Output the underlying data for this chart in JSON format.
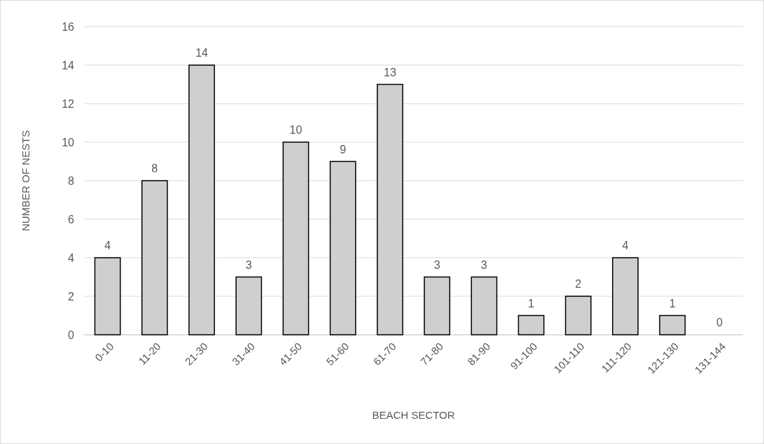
{
  "chart_data": {
    "type": "bar",
    "xlabel": "BEACH SECTOR",
    "ylabel": "NUMBER OF NESTS",
    "categories": [
      "0-10",
      "11-20",
      "21-30",
      "31-40",
      "41-50",
      "51-60",
      "61-70",
      "71-80",
      "81-90",
      "91-100",
      "101-110",
      "111-120",
      "121-130",
      "131-144"
    ],
    "values": [
      4,
      8,
      14,
      3,
      10,
      9,
      13,
      3,
      3,
      1,
      2,
      4,
      1,
      0
    ],
    "color": "#d0cece",
    "ylim": [
      0,
      16
    ],
    "yticks": [
      0,
      2,
      4,
      6,
      8,
      10,
      12,
      14,
      16
    ],
    "grid": "y",
    "data_labels": true
  }
}
